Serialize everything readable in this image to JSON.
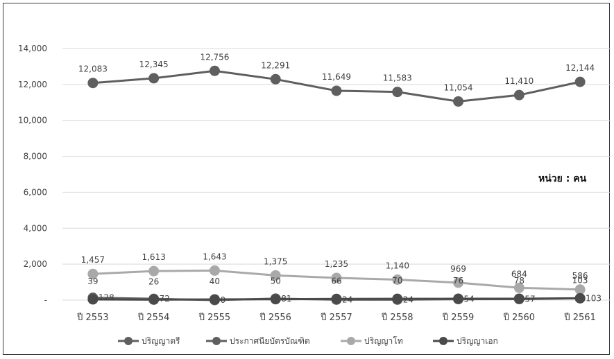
{
  "chart_data": {
    "type": "line",
    "title": "",
    "unit_note": "หน่วย : คน",
    "categories": [
      "ปี 2553",
      "ปี 2554",
      "ปี 2555",
      "ปี 2556",
      "ปี 2557",
      "ปี 2558",
      "ปี 2559",
      "ปี 2560",
      "ปี 2561"
    ],
    "y_ticks": [
      "-",
      "2,000",
      "4,000",
      "6,000",
      "8,000",
      "10,000",
      "12,000",
      "14,000"
    ],
    "ylim": [
      0,
      14000
    ],
    "grid": true,
    "legend_position": "bottom",
    "series": [
      {
        "name": "ปริญญาตรี",
        "color": "#5f5f5f",
        "values": [
          12083,
          12345,
          12756,
          12291,
          11649,
          11583,
          11054,
          11410,
          12144
        ],
        "labels": [
          "12,083",
          "12,345",
          "12,756",
          "12,291",
          "11,649",
          "11,583",
          "11,054",
          "11,410",
          "12,144"
        ]
      },
      {
        "name": "ประกาศนียบัตรบัณฑิต",
        "color": "#5f5f5f",
        "values": [
          128,
          72,
          0,
          81,
          24,
          24,
          54,
          57,
          103
        ],
        "labels": [
          "128",
          "72",
          "0",
          "81",
          "24",
          "24",
          "54",
          "57",
          "103"
        ]
      },
      {
        "name": "ปริญญาโท",
        "color": "#a9a9a9",
        "values": [
          1457,
          1613,
          1643,
          1375,
          1235,
          1140,
          969,
          684,
          586
        ],
        "labels": [
          "1,457",
          "1,613",
          "1,643",
          "1,375",
          "1,235",
          "1,140",
          "969",
          "684",
          "586"
        ]
      },
      {
        "name": "ปริญญาเอก",
        "color": "#4a4a4a",
        "values": [
          39,
          26,
          40,
          50,
          66,
          70,
          76,
          78,
          103
        ],
        "labels": [
          "39",
          "26",
          "40",
          "50",
          "66",
          "70",
          "76",
          "78",
          "103"
        ]
      }
    ]
  }
}
